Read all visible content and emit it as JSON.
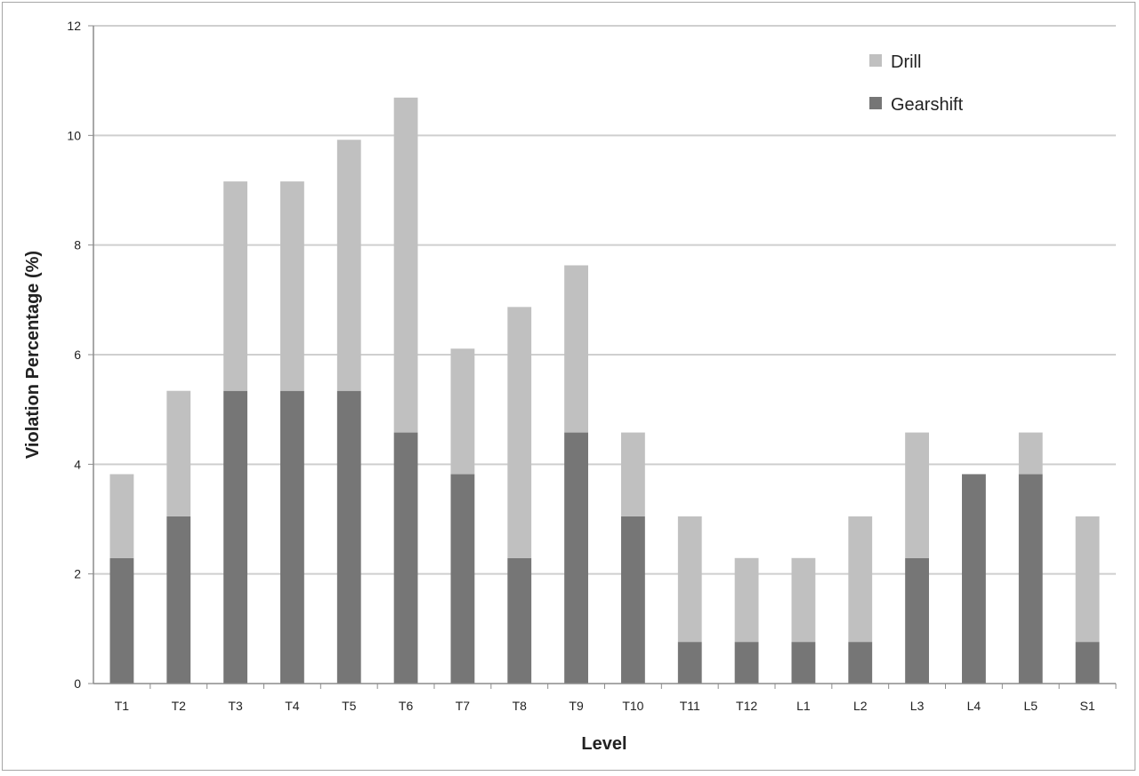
{
  "chart_data": {
    "type": "bar",
    "stacked": true,
    "title": "",
    "xlabel": "Level",
    "ylabel": "Violation Percentage (%)",
    "ylim": [
      0,
      12
    ],
    "yticks": [
      0,
      2,
      4,
      6,
      8,
      10,
      12
    ],
    "grid": true,
    "legend_position": "top-right",
    "categories": [
      "T1",
      "T2",
      "T3",
      "T4",
      "T5",
      "T6",
      "T7",
      "T8",
      "T9",
      "T10",
      "T11",
      "T12",
      "L1",
      "L2",
      "L3",
      "L4",
      "L5",
      "S1"
    ],
    "series": [
      {
        "name": "Gearshift",
        "color": "#767676",
        "values": [
          2.29,
          3.05,
          5.34,
          5.34,
          5.34,
          4.58,
          3.82,
          2.29,
          4.58,
          3.05,
          0.76,
          0.76,
          0.76,
          0.76,
          2.29,
          3.82,
          3.82,
          0.76
        ]
      },
      {
        "name": "Drill",
        "color": "#c0c0c0",
        "values": [
          1.53,
          2.29,
          3.82,
          3.82,
          4.58,
          6.11,
          2.29,
          4.58,
          3.05,
          1.53,
          2.29,
          1.53,
          1.53,
          2.29,
          2.29,
          0,
          0.76,
          2.29
        ]
      }
    ],
    "legend": [
      {
        "label": "Drill",
        "color": "#c0c0c0"
      },
      {
        "label": "Gearshift",
        "color": "#767676"
      }
    ],
    "colors": {
      "grid": "#cfcfcf",
      "axis": "#8c8c8c",
      "frame": "#a6a6a6"
    }
  }
}
